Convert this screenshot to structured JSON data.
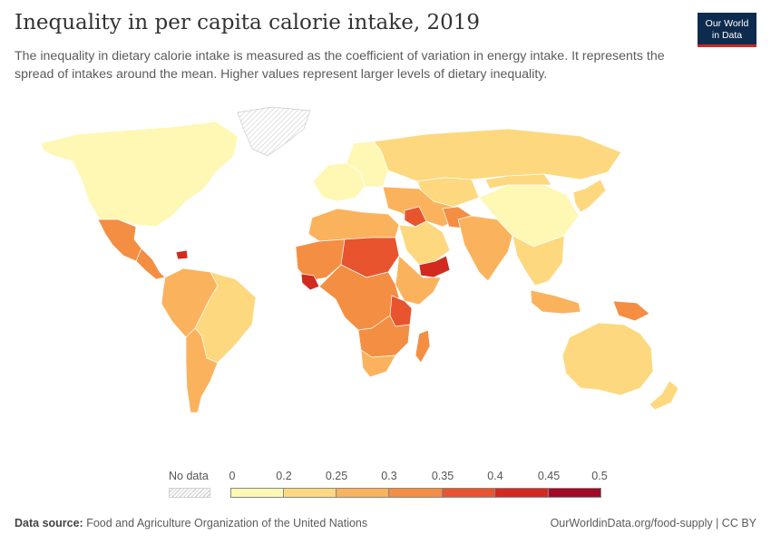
{
  "title": "Inequality in per capita calorie intake, 2019",
  "subtitle": "The inequality in dietary calorie intake is measured as the coefficient of variation in energy intake. It represents the spread of intakes around the mean. Higher values represent larger levels of dietary inequality.",
  "logo": {
    "line1": "Our World",
    "line2": "in Data",
    "bg": "#0d2b4e",
    "accent": "#ce261e"
  },
  "legend": {
    "no_data_label": "No data",
    "ticks": [
      "0",
      "0.2",
      "0.25",
      "0.3",
      "0.35",
      "0.4",
      "0.45",
      "0.5"
    ],
    "bins": [
      {
        "range": "0–0.2",
        "color": "#fef8b4"
      },
      {
        "range": "0.2–0.25",
        "color": "#fdd87e"
      },
      {
        "range": "0.25–0.3",
        "color": "#fbb25c"
      },
      {
        "range": "0.3–0.35",
        "color": "#f48e42"
      },
      {
        "range": "0.35–0.4",
        "color": "#e8542e"
      },
      {
        "range": "0.4–0.45",
        "color": "#d22a1f"
      },
      {
        "range": "0.45–0.5",
        "color": "#a30a28"
      }
    ]
  },
  "regions": [
    {
      "name": "North America",
      "bin": 0
    },
    {
      "name": "Greenland",
      "bin": -1
    },
    {
      "name": "Mexico",
      "bin": 3
    },
    {
      "name": "Central America",
      "bin": 3
    },
    {
      "name": "Haiti",
      "bin": 5
    },
    {
      "name": "Northern South America",
      "bin": 2
    },
    {
      "name": "Brazil",
      "bin": 1
    },
    {
      "name": "Southern South America",
      "bin": 2
    },
    {
      "name": "Western Europe",
      "bin": 0
    },
    {
      "name": "Eastern Europe",
      "bin": 0
    },
    {
      "name": "Russia",
      "bin": 1
    },
    {
      "name": "Central Asia",
      "bin": 1
    },
    {
      "name": "China",
      "bin": 0
    },
    {
      "name": "Mongolia",
      "bin": 1
    },
    {
      "name": "Korea and Japan",
      "bin": 1
    },
    {
      "name": "Middle East",
      "bin": 2
    },
    {
      "name": "Iraq",
      "bin": 4
    },
    {
      "name": "Saudi Arabia",
      "bin": 1
    },
    {
      "name": "Yemen",
      "bin": 5
    },
    {
      "name": "Afghanistan",
      "bin": 3
    },
    {
      "name": "India",
      "bin": 2
    },
    {
      "name": "Southeast Asia",
      "bin": 1
    },
    {
      "name": "Indonesia",
      "bin": 2
    },
    {
      "name": "Papua New Guinea",
      "bin": 3
    },
    {
      "name": "Australia",
      "bin": 1
    },
    {
      "name": "New Zealand",
      "bin": 1
    },
    {
      "name": "North Africa",
      "bin": 2
    },
    {
      "name": "Sahel",
      "bin": 3
    },
    {
      "name": "Niger and Chad",
      "bin": 4
    },
    {
      "name": "Sierra Leone and Liberia",
      "bin": 5
    },
    {
      "name": "Horn of Africa",
      "bin": 2
    },
    {
      "name": "Central Africa",
      "bin": 3
    },
    {
      "name": "Tanzania",
      "bin": 4
    },
    {
      "name": "Southern Africa",
      "bin": 3
    },
    {
      "name": "South Africa",
      "bin": 2
    },
    {
      "name": "Madagascar",
      "bin": 3
    }
  ],
  "footer": {
    "source_label": "Data source:",
    "source_text": "Food and Agriculture Organization of the United Nations",
    "right": "OurWorldinData.org/food-supply | CC BY"
  }
}
